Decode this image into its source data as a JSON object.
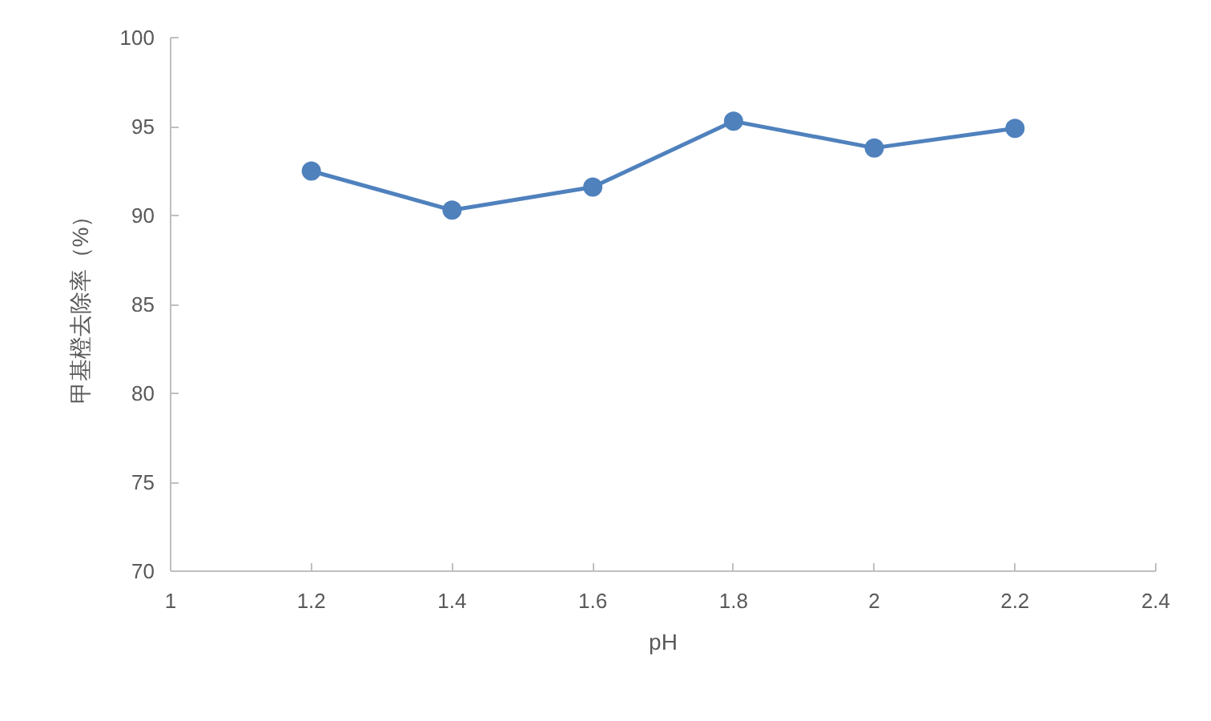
{
  "chart_data": {
    "type": "line",
    "xlabel": "pH",
    "ylabel": "甲基橙去除率（%）",
    "x": [
      1.2,
      1.4,
      1.6,
      1.8,
      2,
      2.2
    ],
    "series": [
      {
        "color": "#4f81bd",
        "values": [
          92.5,
          90.3,
          91.6,
          95.3,
          93.8,
          94.9
        ]
      }
    ],
    "xlim": [
      1,
      2.4
    ],
    "ylim": [
      70,
      100
    ],
    "xticks": [
      1,
      1.2,
      1.4,
      1.6,
      1.8,
      2,
      2.2,
      2.4
    ],
    "yticks": [
      70,
      75,
      80,
      85,
      90,
      95,
      100
    ],
    "grid": false,
    "marker": "circle",
    "line_style": "solid"
  }
}
